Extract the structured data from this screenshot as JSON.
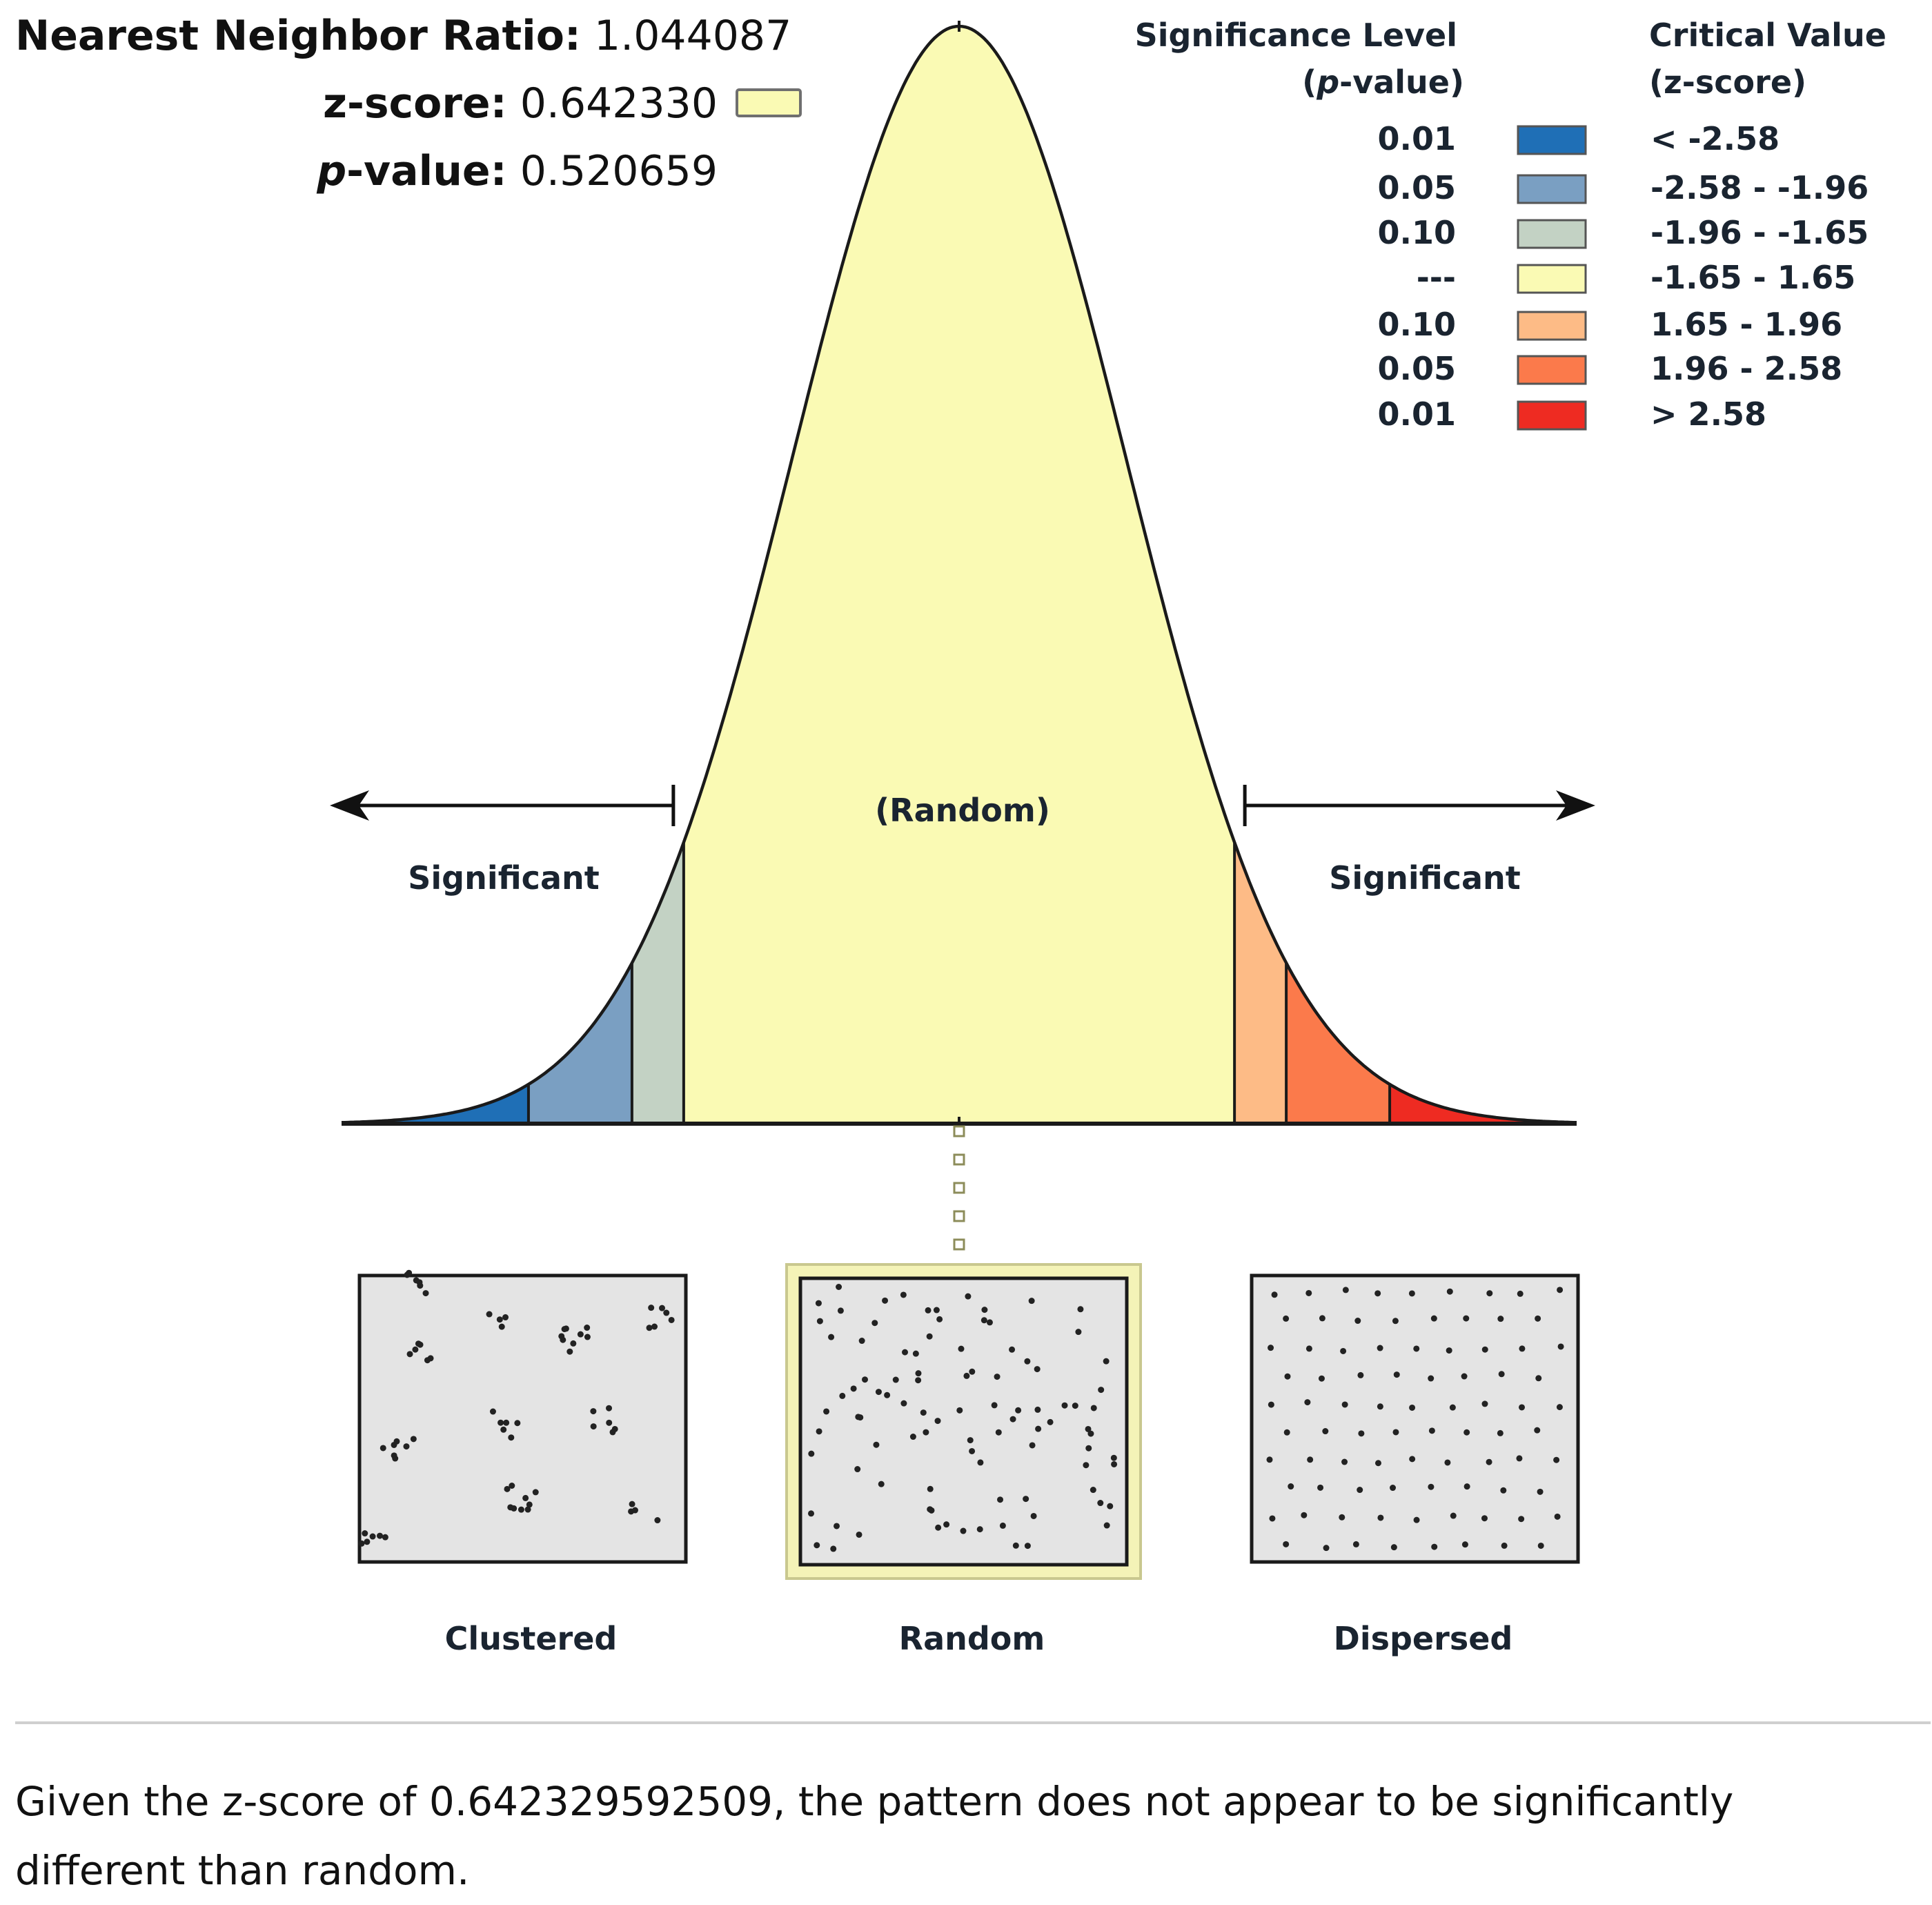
{
  "stats": {
    "ratio_label": "Nearest Neighbor Ratio:",
    "ratio_value": "1.044087",
    "z_label": "z-score:",
    "z_value": "0.642330",
    "p_label_italic": "p",
    "p_label_rest": "-value:",
    "p_value": "0.520659"
  },
  "colors": {
    "z_swatch": "#fafab4",
    "bins": [
      "#1f6fb6",
      "#7a9fc2",
      "#c3d2c4",
      "#fafab4",
      "#fdbb86",
      "#fb7a4b",
      "#ee2b22"
    ],
    "panel_bg": "#e4e4e4",
    "highlight": "#f4f3b7"
  },
  "chart_data": {
    "type": "area",
    "description_kind": "standard normal distribution with z-score significance bins",
    "z_score": 0.64233,
    "x_range": [
      -3.7,
      3.7
    ],
    "bins": [
      {
        "from": -3.7,
        "to": -2.58,
        "color": "#1f6fb6"
      },
      {
        "from": -2.58,
        "to": -1.96,
        "color": "#7a9fc2"
      },
      {
        "from": -1.96,
        "to": -1.65,
        "color": "#c3d2c4"
      },
      {
        "from": -1.65,
        "to": 1.65,
        "color": "#fafab4"
      },
      {
        "from": 1.65,
        "to": 1.96,
        "color": "#fdbb86"
      },
      {
        "from": 1.96,
        "to": 2.58,
        "color": "#fb7a4b"
      },
      {
        "from": 2.58,
        "to": 3.7,
        "color": "#ee2b22"
      }
    ],
    "labels": {
      "center": "(Random)",
      "left": "Significant",
      "right": "Significant"
    },
    "legend": {
      "header_sig_line1": "Significance Level",
      "header_sig_line2_italic": "p",
      "header_sig_line2_rest": "-value)",
      "header_sig_line2_open": "(",
      "header_crit_line1": "Critical Value",
      "header_crit_line2": "(z-score)",
      "rows": [
        {
          "p": "0.01",
          "crit": "< -2.58",
          "color": "#1f6fb6"
        },
        {
          "p": "0.05",
          "crit": "-2.58 - -1.96",
          "color": "#7a9fc2"
        },
        {
          "p": "0.10",
          "crit": "-1.96 - -1.65",
          "color": "#c3d2c4"
        },
        {
          "p": "---",
          "crit": "-1.65 - 1.65",
          "color": "#fafab4"
        },
        {
          "p": "0.10",
          "crit": "1.65 - 1.96",
          "color": "#fdbb86"
        },
        {
          "p": "0.05",
          "crit": "1.96 - 2.58",
          "color": "#fb7a4b"
        },
        {
          "p": "0.01",
          "crit": "> 2.58",
          "color": "#ee2b22"
        }
      ]
    },
    "patterns": [
      {
        "label": "Clustered",
        "selected": false
      },
      {
        "label": "Random",
        "selected": true
      },
      {
        "label": "Dispersed",
        "selected": false
      }
    ]
  },
  "explanation": "Given the z-score of 0.642329592509, the pattern does not appear to be significantly different than random."
}
